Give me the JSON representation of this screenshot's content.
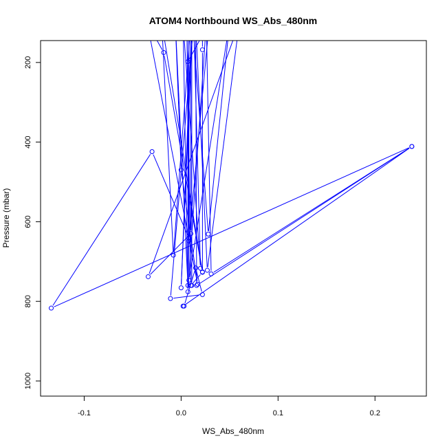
{
  "chart_data": {
    "type": "line",
    "title": "ATOM4 Northbound WS_Abs_480nm",
    "xlabel": "WS_Abs_480nm",
    "ylabel": "Pressure (mbar)",
    "xlim": [
      -0.145,
      0.253
    ],
    "ylim": [
      1038,
      145
    ],
    "y_reversed": true,
    "grid": false,
    "legend": "none",
    "x_ticks": [
      -0.1,
      0.0,
      0.1,
      0.2
    ],
    "x_tick_labels": [
      "-0.1",
      "0.0",
      "0.1",
      "0.2"
    ],
    "y_ticks": [
      200,
      400,
      600,
      800,
      1000
    ],
    "y_tick_labels": [
      "200",
      "400",
      "600",
      "800",
      "1000"
    ],
    "series_color": "#0000ff",
    "series": [
      {
        "points": [
          {
            "x": 0.022,
            "y": 100
          },
          {
            "x": 0.022,
            "y": 168
          },
          {
            "x": 0.022,
            "y": 727
          },
          {
            "x": 0.01,
            "y": 760
          },
          {
            "x": 0.006,
            "y": 100
          },
          {
            "x": 0.008,
            "y": 648
          },
          {
            "x": 0.029,
            "y": 100
          },
          {
            "x": 0.007,
            "y": 198
          },
          {
            "x": 0.007,
            "y": 760
          },
          {
            "x": -0.006,
            "y": 100
          },
          {
            "x": 0.0,
            "y": 470
          },
          {
            "x": 0.017,
            "y": 757
          },
          {
            "x": -0.035,
            "y": 100
          },
          {
            "x": -0.018,
            "y": 175
          },
          {
            "x": 0.022,
            "y": 726
          },
          {
            "x": -0.02,
            "y": 100
          },
          {
            "x": -0.008,
            "y": 684
          },
          {
            "x": 0.01,
            "y": 100
          },
          {
            "x": 0.01,
            "y": 630
          },
          {
            "x": -0.034,
            "y": 738
          },
          {
            "x": 0.06,
            "y": 100
          },
          {
            "x": 0.027,
            "y": 722
          },
          {
            "x": 0.015,
            "y": 100
          },
          {
            "x": 0.016,
            "y": 760
          },
          {
            "x": 0.238,
            "y": 411
          },
          {
            "x": 0.002,
            "y": 812
          },
          {
            "x": 0.003,
            "y": 812
          },
          {
            "x": 0.015,
            "y": 716
          },
          {
            "x": 0.022,
            "y": 783
          },
          {
            "x": -0.011,
            "y": 793
          },
          {
            "x": 0.013,
            "y": 100
          },
          {
            "x": 0.02,
            "y": 717
          },
          {
            "x": 0.002,
            "y": 100
          },
          {
            "x": 0.007,
            "y": 776
          },
          {
            "x": 0.026,
            "y": 100
          },
          {
            "x": 0.031,
            "y": 731
          },
          {
            "x": 0.238,
            "y": 411
          },
          {
            "x": -0.134,
            "y": 817
          },
          {
            "x": -0.03,
            "y": 424
          },
          {
            "x": 0.008,
            "y": 641
          },
          {
            "x": 0.008,
            "y": 100
          },
          {
            "x": 0.008,
            "y": 747
          },
          {
            "x": 0.05,
            "y": 100
          },
          {
            "x": 0.028,
            "y": 631
          },
          {
            "x": 0.012,
            "y": 100
          },
          {
            "x": 0.0,
            "y": 766
          },
          {
            "x": 0.011,
            "y": 100
          },
          {
            "x": 0.011,
            "y": 760
          }
        ]
      }
    ]
  }
}
